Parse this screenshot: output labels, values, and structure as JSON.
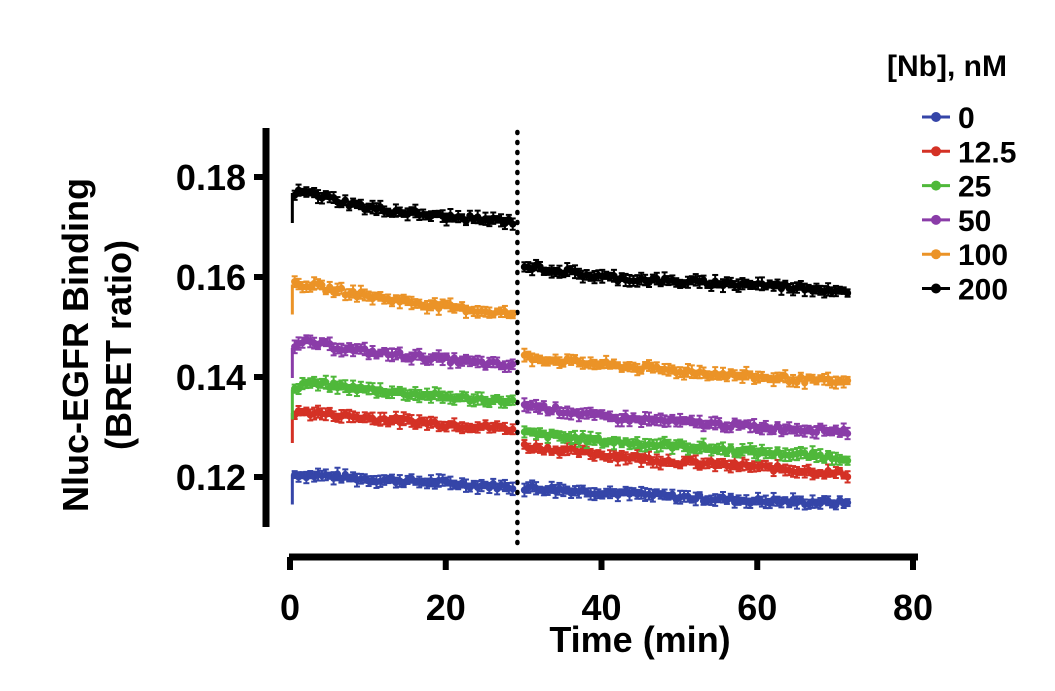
{
  "chart_data": {
    "type": "scatter",
    "xlabel": "Time (min)",
    "ylabel_lines": [
      "Nluc-EGFR Binding",
      "(BRET ratio)"
    ],
    "xlim": [
      0,
      80
    ],
    "ylim": [
      0.11,
      0.19
    ],
    "x_ticks": [
      0,
      20,
      40,
      60,
      80
    ],
    "y_ticks": [
      0.12,
      0.14,
      0.16,
      0.18
    ],
    "x_tick_labels": [
      "0",
      "20",
      "40",
      "60",
      "80"
    ],
    "y_tick_labels": [
      "0.12",
      "0.14",
      "0.16",
      "0.18"
    ],
    "vline_x": 29.2,
    "legend": {
      "title": "[Nb], nM",
      "placement": "top-right"
    },
    "series": [
      {
        "name": "0",
        "color": "#3545a8",
        "points": [
          [
            0.6,
            0.1205
          ],
          [
            5,
            0.1202
          ],
          [
            10,
            0.1196
          ],
          [
            15,
            0.1192
          ],
          [
            20,
            0.1188
          ],
          [
            25,
            0.1183
          ],
          [
            29,
            0.118
          ],
          [
            30,
            0.1179
          ],
          [
            40,
            0.117
          ],
          [
            50,
            0.116
          ],
          [
            60,
            0.1152
          ],
          [
            72,
            0.1148
          ]
        ]
      },
      {
        "name": "12.5",
        "color": "#d43125",
        "points": [
          [
            0.6,
            0.1328
          ],
          [
            2,
            0.133
          ],
          [
            10,
            0.1318
          ],
          [
            20,
            0.1306
          ],
          [
            29,
            0.1296
          ],
          [
            30,
            0.1262
          ],
          [
            40,
            0.1245
          ],
          [
            50,
            0.123
          ],
          [
            60,
            0.122
          ],
          [
            72,
            0.1205
          ]
        ]
      },
      {
        "name": "25",
        "color": "#4fb83a",
        "points": [
          [
            0.6,
            0.1375
          ],
          [
            2,
            0.1388
          ],
          [
            10,
            0.1375
          ],
          [
            20,
            0.136
          ],
          [
            29,
            0.135
          ],
          [
            30,
            0.1288
          ],
          [
            40,
            0.1272
          ],
          [
            50,
            0.1262
          ],
          [
            60,
            0.125
          ],
          [
            72,
            0.1238
          ]
        ]
      },
      {
        "name": "50",
        "color": "#8a3ca8",
        "points": [
          [
            0.6,
            0.1458
          ],
          [
            2,
            0.147
          ],
          [
            10,
            0.145
          ],
          [
            20,
            0.1435
          ],
          [
            29,
            0.142
          ],
          [
            30,
            0.1345
          ],
          [
            40,
            0.132
          ],
          [
            50,
            0.131
          ],
          [
            60,
            0.13
          ],
          [
            72,
            0.1292
          ]
        ]
      },
      {
        "name": "100",
        "color": "#eb9327",
        "points": [
          [
            0.6,
            0.1585
          ],
          [
            2,
            0.1585
          ],
          [
            10,
            0.1562
          ],
          [
            20,
            0.154
          ],
          [
            29,
            0.1525
          ],
          [
            30,
            0.144
          ],
          [
            40,
            0.1425
          ],
          [
            50,
            0.1412
          ],
          [
            60,
            0.14
          ],
          [
            72,
            0.1388
          ]
        ]
      },
      {
        "name": "200",
        "color": "#000000",
        "points": [
          [
            0.6,
            0.1768
          ],
          [
            2,
            0.177
          ],
          [
            10,
            0.1738
          ],
          [
            20,
            0.172
          ],
          [
            29,
            0.171
          ],
          [
            30,
            0.1622
          ],
          [
            40,
            0.16
          ],
          [
            50,
            0.159
          ],
          [
            60,
            0.1585
          ],
          [
            72,
            0.1572
          ]
        ]
      }
    ]
  }
}
